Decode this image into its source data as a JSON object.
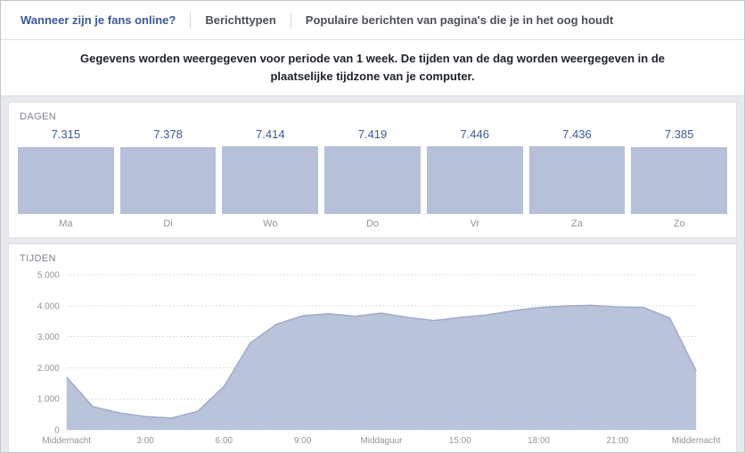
{
  "tabs": [
    {
      "label": "Wanneer zijn je fans online?",
      "active": true
    },
    {
      "label": "Berichttypen",
      "active": false
    },
    {
      "label": "Populaire berichten van pagina's die je in het oog houdt",
      "active": false
    }
  ],
  "info_text": "Gegevens worden weergegeven voor periode van 1 week. De tijden van de dag worden weergegeven in de plaatselijke tijdzone van je computer.",
  "colors": {
    "accent_blue": "#3b5998",
    "bar_fill": "#b6c0d8",
    "area_fill": "#b9c3da",
    "area_stroke": "#9fabc9",
    "grid_line": "#d8dade",
    "axis_text": "#90949c"
  },
  "chart_data": [
    {
      "type": "bar",
      "title": "DAGEN",
      "categories": [
        "Ma",
        "Di",
        "Wo",
        "Do",
        "Vr",
        "Za",
        "Zo"
      ],
      "values": [
        7315,
        7378,
        7414,
        7419,
        7446,
        7436,
        7385
      ],
      "value_labels": [
        "7.315",
        "7.378",
        "7.414",
        "7.419",
        "7.446",
        "7.436",
        "7.385"
      ]
    },
    {
      "type": "area",
      "title": "TIJDEN",
      "x_hours": [
        0,
        1,
        2,
        3,
        4,
        5,
        6,
        7,
        8,
        9,
        10,
        11,
        12,
        13,
        14,
        15,
        16,
        17,
        18,
        19,
        20,
        21,
        22,
        23,
        24
      ],
      "values": [
        1700,
        750,
        550,
        430,
        380,
        600,
        1400,
        2800,
        3400,
        3680,
        3740,
        3660,
        3760,
        3620,
        3520,
        3620,
        3700,
        3830,
        3940,
        3990,
        4010,
        3960,
        3940,
        3600,
        1900
      ],
      "ylim": [
        0,
        5000
      ],
      "y_ticks": [
        0,
        1000,
        2000,
        3000,
        4000,
        5000
      ],
      "y_tick_labels": [
        "0",
        "1.000",
        "2.000",
        "3.000",
        "4.000",
        "5.000"
      ],
      "x_ticks": [
        0,
        3,
        6,
        9,
        12,
        15,
        18,
        21,
        24
      ],
      "x_tick_labels": [
        "Middernacht",
        "3:00",
        "6:00",
        "9:00",
        "Middaguur",
        "15:00",
        "18:00",
        "21:00",
        "Middernacht"
      ]
    }
  ]
}
